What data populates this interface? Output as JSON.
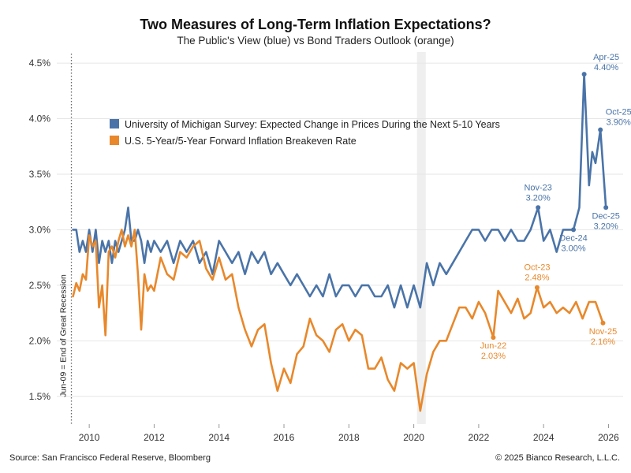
{
  "chart_data": {
    "type": "line",
    "title": "Two Measures of Long-Term Inflation Expectations?",
    "subtitle": "The Public's View (blue) vs Bond Traders Outlook (orange)",
    "xlabel": "",
    "ylabel": "",
    "xlim": [
      2009.0,
      2026.45
    ],
    "ylim": [
      1.25,
      4.6
    ],
    "x_ticks": [
      2010,
      2012,
      2014,
      2016,
      2018,
      2020,
      2022,
      2024,
      2026
    ],
    "y_ticks": [
      1.5,
      2.0,
      2.5,
      3.0,
      3.5,
      4.0,
      4.5
    ],
    "y_tick_labels": [
      "1.5%",
      "2.0%",
      "2.5%",
      "3.0%",
      "3.5%",
      "4.0%",
      "4.5%"
    ],
    "shaded_periods": [
      [
        2020.1,
        2020.37
      ]
    ],
    "recession_line": {
      "x": 2009.45,
      "label": "Jun-09 = End of Great Recession"
    },
    "legend": [
      {
        "name": "University of Michigan Survey: Expected Change in Prices During the Next 5-10 Years",
        "color": "#4a74a8"
      },
      {
        "name": "U.S. 5-Year/5-Year Forward Inflation Breakeven Rate",
        "color": "#e8882b"
      }
    ],
    "series": [
      {
        "name": "University of Michigan Survey: Expected Change in Prices During the Next 5-10 Years",
        "color": "#4a74a8",
        "x": [
          2009.5,
          2009.6,
          2009.7,
          2009.8,
          2009.9,
          2010.0,
          2010.1,
          2010.2,
          2010.3,
          2010.4,
          2010.5,
          2010.6,
          2010.7,
          2010.8,
          2010.9,
          2011.0,
          2011.1,
          2011.2,
          2011.3,
          2011.4,
          2011.5,
          2011.6,
          2011.7,
          2011.8,
          2011.9,
          2012.0,
          2012.2,
          2012.4,
          2012.6,
          2012.8,
          2013.0,
          2013.2,
          2013.4,
          2013.6,
          2013.8,
          2014.0,
          2014.2,
          2014.4,
          2014.6,
          2014.8,
          2015.0,
          2015.2,
          2015.4,
          2015.6,
          2015.8,
          2016.0,
          2016.2,
          2016.4,
          2016.6,
          2016.8,
          2017.0,
          2017.2,
          2017.4,
          2017.6,
          2017.8,
          2018.0,
          2018.2,
          2018.4,
          2018.6,
          2018.8,
          2019.0,
          2019.2,
          2019.4,
          2019.6,
          2019.8,
          2020.0,
          2020.2,
          2020.4,
          2020.6,
          2020.8,
          2021.0,
          2021.2,
          2021.4,
          2021.6,
          2021.8,
          2022.0,
          2022.2,
          2022.4,
          2022.6,
          2022.8,
          2023.0,
          2023.2,
          2023.4,
          2023.6,
          2023.83,
          2024.0,
          2024.2,
          2024.4,
          2024.6,
          2024.8,
          2024.92,
          2025.1,
          2025.25,
          2025.4,
          2025.5,
          2025.6,
          2025.75,
          2025.92
        ],
        "values": [
          3.0,
          3.0,
          2.8,
          2.9,
          2.8,
          3.0,
          2.8,
          3.0,
          2.7,
          2.9,
          2.8,
          2.9,
          2.7,
          2.9,
          2.8,
          2.9,
          3.0,
          3.2,
          2.9,
          2.9,
          3.0,
          2.9,
          2.7,
          2.9,
          2.8,
          2.9,
          2.8,
          2.9,
          2.7,
          2.9,
          2.8,
          2.9,
          2.7,
          2.8,
          2.6,
          2.9,
          2.8,
          2.7,
          2.8,
          2.6,
          2.8,
          2.7,
          2.8,
          2.6,
          2.7,
          2.6,
          2.5,
          2.6,
          2.5,
          2.4,
          2.5,
          2.4,
          2.6,
          2.4,
          2.5,
          2.5,
          2.4,
          2.5,
          2.5,
          2.4,
          2.4,
          2.5,
          2.3,
          2.5,
          2.3,
          2.5,
          2.3,
          2.7,
          2.5,
          2.7,
          2.6,
          2.7,
          2.8,
          2.9,
          3.0,
          3.0,
          2.9,
          3.0,
          3.0,
          2.9,
          3.0,
          2.9,
          2.9,
          3.0,
          3.2,
          2.9,
          3.0,
          2.8,
          3.0,
          3.0,
          3.0,
          3.2,
          4.4,
          3.4,
          3.7,
          3.6,
          3.9,
          3.2
        ]
      },
      {
        "name": "U.S. 5-Year/5-Year Forward Inflation Breakeven Rate",
        "color": "#e8882b",
        "x": [
          2009.5,
          2009.6,
          2009.7,
          2009.8,
          2009.9,
          2010.0,
          2010.1,
          2010.2,
          2010.3,
          2010.4,
          2010.5,
          2010.6,
          2010.7,
          2010.8,
          2010.9,
          2011.0,
          2011.1,
          2011.2,
          2011.3,
          2011.4,
          2011.5,
          2011.6,
          2011.7,
          2011.8,
          2011.9,
          2012.0,
          2012.2,
          2012.4,
          2012.6,
          2012.8,
          2013.0,
          2013.2,
          2013.4,
          2013.6,
          2013.8,
          2014.0,
          2014.2,
          2014.4,
          2014.6,
          2014.8,
          2015.0,
          2015.2,
          2015.4,
          2015.6,
          2015.8,
          2016.0,
          2016.2,
          2016.4,
          2016.6,
          2016.8,
          2017.0,
          2017.2,
          2017.4,
          2017.6,
          2017.8,
          2018.0,
          2018.2,
          2018.4,
          2018.6,
          2018.8,
          2019.0,
          2019.2,
          2019.4,
          2019.6,
          2019.8,
          2020.0,
          2020.2,
          2020.4,
          2020.6,
          2020.8,
          2021.0,
          2021.2,
          2021.4,
          2021.6,
          2021.8,
          2022.0,
          2022.2,
          2022.45,
          2022.6,
          2022.8,
          2023.0,
          2023.2,
          2023.4,
          2023.6,
          2023.8,
          2024.0,
          2024.2,
          2024.4,
          2024.6,
          2024.8,
          2025.0,
          2025.2,
          2025.4,
          2025.6,
          2025.83
        ],
        "values": [
          2.4,
          2.52,
          2.45,
          2.6,
          2.55,
          2.95,
          2.85,
          2.9,
          2.3,
          2.5,
          2.05,
          2.8,
          2.85,
          2.75,
          2.9,
          3.0,
          2.85,
          2.95,
          2.85,
          3.0,
          2.6,
          2.1,
          2.6,
          2.45,
          2.5,
          2.45,
          2.75,
          2.6,
          2.55,
          2.8,
          2.75,
          2.85,
          2.9,
          2.65,
          2.55,
          2.75,
          2.55,
          2.6,
          2.3,
          2.1,
          1.95,
          2.1,
          2.15,
          1.8,
          1.55,
          1.75,
          1.62,
          1.88,
          1.95,
          2.2,
          2.05,
          2.0,
          1.9,
          2.1,
          2.15,
          2.0,
          2.1,
          2.05,
          1.75,
          1.75,
          1.85,
          1.65,
          1.55,
          1.8,
          1.75,
          1.8,
          1.37,
          1.7,
          1.9,
          2.0,
          2.0,
          2.15,
          2.3,
          2.3,
          2.2,
          2.35,
          2.25,
          2.03,
          2.45,
          2.35,
          2.25,
          2.38,
          2.2,
          2.25,
          2.48,
          2.3,
          2.35,
          2.25,
          2.3,
          2.25,
          2.35,
          2.2,
          2.35,
          2.35,
          2.16
        ]
      }
    ],
    "annotations": [
      {
        "series": 0,
        "x": 2023.83,
        "y": 3.2,
        "lines": [
          "Nov-23",
          "3.20%"
        ],
        "pos": "above"
      },
      {
        "series": 0,
        "x": 2025.25,
        "y": 4.4,
        "lines": [
          "Apr-25",
          "4.40%"
        ],
        "pos": "above-right"
      },
      {
        "series": 0,
        "x": 2025.75,
        "y": 3.9,
        "lines": [
          "Oct-25",
          "3.90%"
        ],
        "pos": "right"
      },
      {
        "series": 0,
        "x": 2024.92,
        "y": 3.0,
        "lines": [
          "Dec-24",
          "3.00%"
        ],
        "pos": "below"
      },
      {
        "series": 0,
        "x": 2025.92,
        "y": 3.2,
        "lines": [
          "Dec-25",
          "3.20%"
        ],
        "pos": "below"
      },
      {
        "series": 1,
        "x": 2023.8,
        "y": 2.48,
        "lines": [
          "Oct-23",
          "2.48%"
        ],
        "pos": "above"
      },
      {
        "series": 1,
        "x": 2022.45,
        "y": 2.03,
        "lines": [
          "Jun-22",
          "2.03%"
        ],
        "pos": "below"
      },
      {
        "series": 1,
        "x": 2025.83,
        "y": 2.16,
        "lines": [
          "Nov-25",
          "2.16%"
        ],
        "pos": "below"
      }
    ]
  },
  "footer": {
    "source": "Source: San Francisco Federal Reserve, Bloomberg",
    "copyright": "© 2025 Bianco Research, L.L.C."
  }
}
